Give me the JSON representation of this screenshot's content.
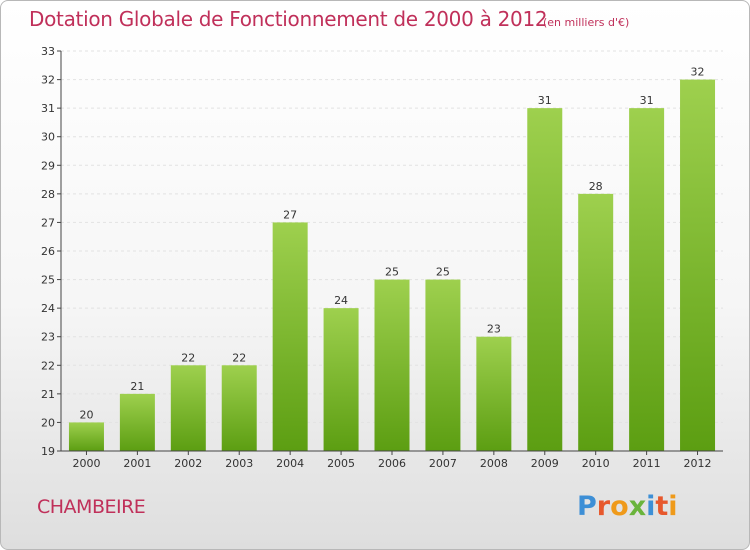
{
  "header": {
    "title": "Dotation Globale de Fonctionnement de 2000 à 2012",
    "unit": "(en milliers d'€)"
  },
  "footer": {
    "commune": "CHAMBEIRE",
    "logo_text": "Proxiti"
  },
  "colors": {
    "bar_top": "#9ed04e",
    "bar_bottom": "#5c9e12",
    "title": "#c0305a"
  },
  "chart_data": {
    "type": "bar",
    "title": "Dotation Globale de Fonctionnement de 2000 à 2012",
    "subtitle": "(en milliers d'€)",
    "categories": [
      "2000",
      "2001",
      "2002",
      "2003",
      "2004",
      "2005",
      "2006",
      "2007",
      "2008",
      "2009",
      "2010",
      "2011",
      "2012"
    ],
    "values": [
      20,
      21,
      22,
      22,
      27,
      24,
      25,
      25,
      23,
      31,
      28,
      31,
      32
    ],
    "ylim": [
      19,
      33
    ],
    "yticks": [
      19,
      20,
      21,
      22,
      23,
      24,
      25,
      26,
      27,
      28,
      29,
      30,
      31,
      32,
      33
    ],
    "grid": true,
    "xlabel": "",
    "ylabel": ""
  }
}
